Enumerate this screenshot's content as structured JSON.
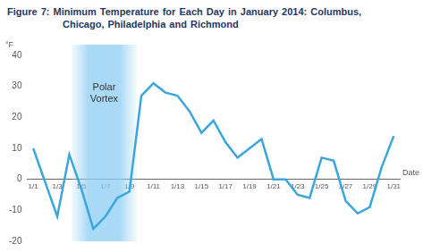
{
  "chart_data": {
    "type": "line",
    "title": "Figure 7: Minimum Temperature for Each Day in January 2014: Columbus, Chicago, Philadelphia and Richmond",
    "y_label": "°F",
    "x_label": "Date",
    "categories": [
      "1/1",
      null,
      "1/3",
      null,
      "1/5",
      null,
      "1/7",
      null,
      "1/9",
      null,
      "1/11",
      null,
      "1/13",
      null,
      "1/15",
      null,
      "1/17",
      null,
      "1/19",
      null,
      "1/21",
      null,
      "1/23",
      null,
      "1/25",
      null,
      "1/27",
      null,
      "1/29",
      null,
      "1/31"
    ],
    "values": [
      10,
      -1,
      -12,
      8,
      -3,
      -16,
      -12,
      -6,
      -4,
      27,
      31,
      28,
      27,
      22,
      15,
      19,
      12,
      7,
      10,
      13,
      0,
      0,
      -5,
      -6,
      7,
      6,
      -7,
      -11,
      -9,
      4,
      14
    ],
    "color": "#3aa6dd",
    "ylim": [
      -20,
      40
    ],
    "yticks": [
      -20,
      -10,
      0,
      10,
      20,
      30,
      40
    ],
    "grid": false,
    "annotations": [
      {
        "text": "Polar Vortex",
        "from": "1/5",
        "to": "1/9"
      }
    ]
  }
}
